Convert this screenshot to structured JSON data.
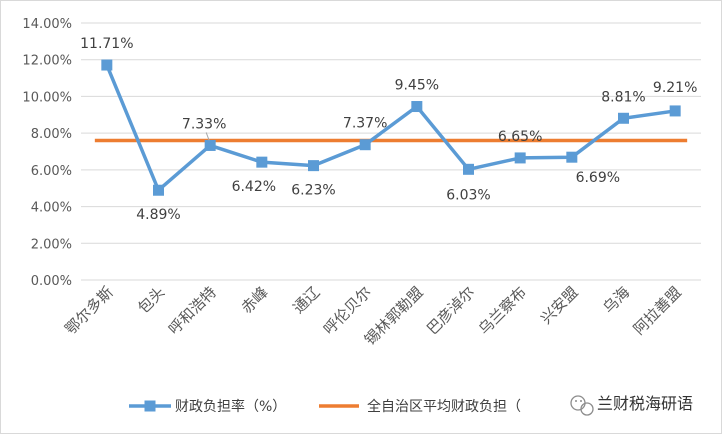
{
  "chart_data": {
    "type": "line",
    "title": "",
    "xlabel": "",
    "ylabel": "",
    "ylim": [
      0,
      14
    ],
    "y_tick_step": 2,
    "y_tick_format": "percent_2dp",
    "grid": true,
    "legend_position": "bottom",
    "categories": [
      "鄂尔多斯",
      "包头",
      "呼和浩特",
      "赤峰",
      "通辽",
      "呼伦贝尔",
      "锡林郭勒盟",
      "巴彦淖尔",
      "乌兰察布",
      "兴安盟",
      "乌海",
      "阿拉善盟"
    ],
    "series": [
      {
        "name": "财政负担率（%）",
        "color": "#5b9bd5",
        "marker": "square",
        "values": [
          11.71,
          4.89,
          7.33,
          6.42,
          6.23,
          7.37,
          9.45,
          6.03,
          6.65,
          6.69,
          8.81,
          9.21
        ],
        "labels": [
          "11.71%",
          "4.89%",
          "7.33%",
          "6.42%",
          "6.23%",
          "7.37%",
          "9.45%",
          "6.03%",
          "6.65%",
          "6.69%",
          "8.81%",
          "9.21%"
        ]
      },
      {
        "name": "全自治区平均财政负担（",
        "color": "#ed7d31",
        "marker": "none",
        "value": 7.6
      }
    ]
  },
  "watermark": {
    "text": "兰财税海研语",
    "icon": "wechat-icon"
  }
}
